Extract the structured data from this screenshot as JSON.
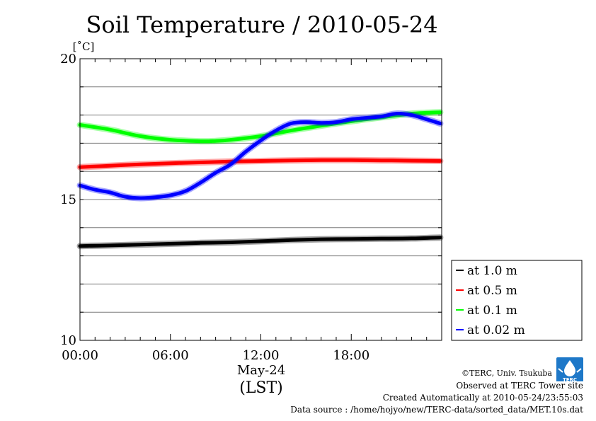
{
  "chart_data": {
    "type": "line",
    "title": "Soil Temperature / 2010-05-24",
    "ylabel": "[˚C]",
    "xlabel": "(LST)",
    "date_label": "May-24",
    "ylim": [
      10,
      20
    ],
    "y_ticks": [
      10,
      15,
      20
    ],
    "y_minor_step": 1,
    "xlim": [
      0,
      24
    ],
    "x_ticks": [
      {
        "value": 0,
        "label": "00:00"
      },
      {
        "value": 6,
        "label": "06:00"
      },
      {
        "value": 12,
        "label": "12:00"
      },
      {
        "value": 18,
        "label": "18:00"
      }
    ],
    "grid": true,
    "legend_position": "right",
    "series": [
      {
        "name": "at 1.0 m",
        "color": "#000000",
        "x": [
          0,
          2,
          4,
          6,
          8,
          10,
          12,
          14,
          16,
          18,
          20,
          22,
          23.9
        ],
        "values": [
          13.35,
          13.37,
          13.4,
          13.43,
          13.46,
          13.48,
          13.52,
          13.56,
          13.59,
          13.6,
          13.61,
          13.62,
          13.65
        ]
      },
      {
        "name": "at 0.5 m",
        "color": "#ff0000",
        "x": [
          0,
          2,
          4,
          6,
          8,
          10,
          12,
          14,
          16,
          18,
          20,
          22,
          23.9
        ],
        "values": [
          16.15,
          16.2,
          16.25,
          16.29,
          16.32,
          16.35,
          16.37,
          16.39,
          16.4,
          16.4,
          16.39,
          16.38,
          16.37
        ]
      },
      {
        "name": "at 0.1 m",
        "color": "#00ff00",
        "x": [
          0,
          2,
          4,
          6,
          8,
          9,
          10,
          12,
          14,
          16,
          18,
          20,
          22,
          23.9
        ],
        "values": [
          17.65,
          17.48,
          17.25,
          17.12,
          17.07,
          17.08,
          17.12,
          17.25,
          17.45,
          17.62,
          17.78,
          17.92,
          18.05,
          18.1
        ]
      },
      {
        "name": "at 0.02 m",
        "color": "#0000ff",
        "x": [
          0,
          1,
          2,
          3,
          4,
          5,
          6,
          7,
          8,
          9,
          10,
          11,
          12,
          13,
          14,
          15,
          16,
          17,
          18,
          19,
          20,
          21,
          22,
          23,
          23.9
        ],
        "values": [
          15.5,
          15.35,
          15.25,
          15.1,
          15.05,
          15.08,
          15.15,
          15.3,
          15.6,
          15.95,
          16.25,
          16.7,
          17.1,
          17.45,
          17.7,
          17.75,
          17.72,
          17.75,
          17.85,
          17.9,
          17.95,
          18.05,
          18.0,
          17.85,
          17.7
        ]
      }
    ]
  },
  "footer": {
    "copyright": "©TERC, Univ. Tsukuba",
    "observed": "Observed at TERC Tower site",
    "created": "Created Automatically at 2010-05-24/23:55:03",
    "source": "Data source : /home/hojyo/new/TERC-data/sorted_data/MET.10s.dat"
  },
  "logo": {
    "text": "TERC",
    "color": "#1e78c8"
  }
}
